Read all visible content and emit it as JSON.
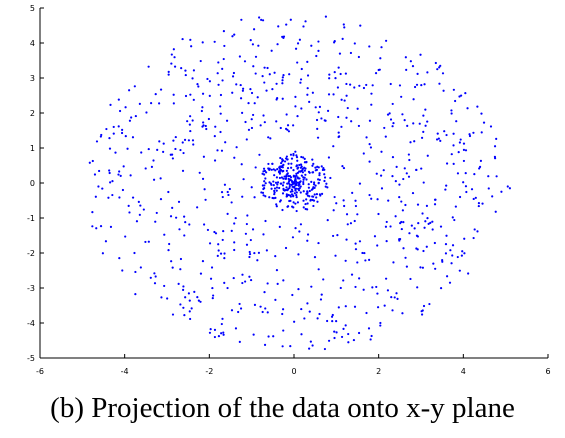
{
  "caption": "(b)  Projection of the data onto x-y plane",
  "chart_data": {
    "type": "scatter",
    "title": "",
    "xlabel": "",
    "ylabel": "",
    "xlim": [
      -6,
      6
    ],
    "ylim": [
      -5,
      5
    ],
    "xticks": [
      -6,
      -4,
      -2,
      0,
      2,
      4,
      6
    ],
    "yticks": [
      -5,
      -4,
      -3,
      -2,
      -1,
      0,
      1,
      2,
      3,
      4,
      5
    ],
    "grid": false,
    "legend": "none",
    "marker_color": "#0000ff",
    "description_of_series": {
      "core_cluster": "dense points concentrated near origin within radius about 0.7",
      "spread": "points spread roughly uniformly across a disk of radius about 5 centered at origin"
    },
    "series": [
      {
        "marker": "dot",
        "point_count_approx": 1100,
        "x_extent": [
          -4.9,
          5.1
        ],
        "y_extent": [
          -4.8,
          4.7
        ]
      }
    ]
  }
}
